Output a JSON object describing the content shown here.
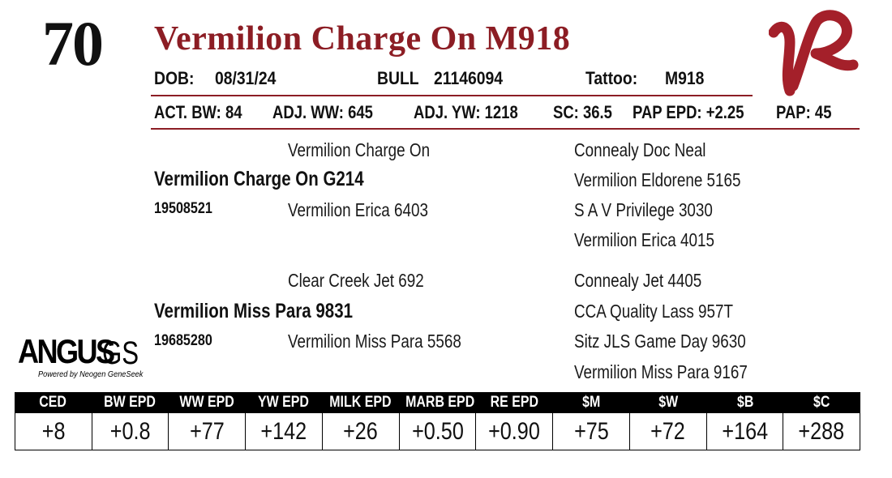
{
  "lot": {
    "number": "70"
  },
  "animal": {
    "name": "Vermilion Charge On M918",
    "dob_label": "DOB:",
    "dob": "08/31/24",
    "sex": "BULL",
    "reg_no": "21146094",
    "tattoo_label": "Tattoo:",
    "tattoo": "M918"
  },
  "performance": {
    "act_bw": "ACT. BW: 84",
    "adj_ww": "ADJ. WW: 645",
    "adj_yw": "ADJ. YW: 1218",
    "sc": "SC: 36.5",
    "pap_epd": "PAP EPD: +2.25",
    "pap": "PAP: 45"
  },
  "pedigree": {
    "sire": {
      "name": "Vermilion Charge On G214",
      "reg_no": "19508521",
      "sire": "Vermilion Charge On",
      "dam": "Vermilion Erica 6403",
      "sire_sire": "Connealy Doc Neal",
      "sire_dam": "Vermilion Eldorene 5165",
      "dam_sire": "S A V Privilege 3030",
      "dam_dam": "Vermilion Erica 4015"
    },
    "dam": {
      "name": "Vermilion Miss Para 9831",
      "reg_no": "19685280",
      "sire": "Clear Creek Jet 692",
      "dam": "Vermilion Miss Para 5568",
      "sire_sire": "Connealy Jet 4405",
      "sire_dam": "CCA Quality Lass 957T",
      "dam_sire": "Sitz JLS Game Day 9630",
      "dam_dam": "Vermilion Miss Para 9167"
    }
  },
  "logo": {
    "angus_word": "ANGUS",
    "gs_word": "GS",
    "tagline": "Powered by Neogen GeneSeek",
    "brand_mark": "vr-brand-logo",
    "brand_color": "#a4202a"
  },
  "epd": {
    "headers": [
      "CED",
      "BW EPD",
      "WW EPD",
      "YW EPD",
      "MILK EPD",
      "MARB EPD",
      "RE EPD",
      "$M",
      "$W",
      "$B",
      "$C"
    ],
    "values": [
      "+8",
      "+0.8",
      "+77",
      "+142",
      "+26",
      "+0.50",
      "+0.90",
      "+75",
      "+72",
      "+164",
      "+288"
    ]
  },
  "colors": {
    "accent": "#8c1d24",
    "table_header_bg": "#000000"
  }
}
